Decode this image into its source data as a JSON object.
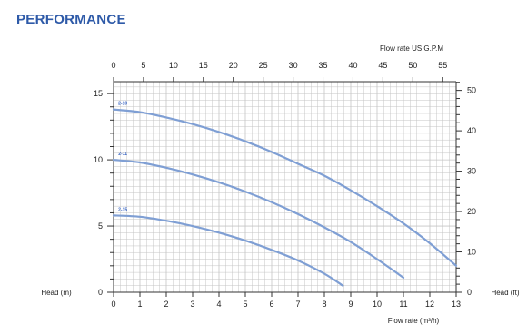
{
  "title": "PERFORMANCE",
  "chart_data": {
    "type": "line",
    "x_bottom": {
      "label": "Flow rate (m³/h)",
      "range": [
        0,
        13
      ],
      "ticks": [
        0,
        1,
        2,
        3,
        4,
        5,
        6,
        7,
        8,
        9,
        10,
        11,
        12,
        13
      ]
    },
    "x_top": {
      "label": "Flow rate US G.P.M",
      "ticks": [
        0,
        5,
        10,
        15,
        20,
        25,
        30,
        35,
        40,
        45,
        50,
        55
      ]
    },
    "y_left": {
      "label": "Head (m)",
      "range": [
        0,
        15
      ],
      "ticks": [
        0,
        5,
        10,
        15
      ]
    },
    "y_right": {
      "label": "Head (ft)",
      "ticks": [
        0,
        10,
        20,
        30,
        40,
        50
      ]
    },
    "grid": true,
    "series": [
      {
        "name": "2-10",
        "x": [
          0,
          1,
          2,
          3,
          4,
          5,
          6,
          7,
          8,
          9,
          10,
          11,
          12,
          13
        ],
        "y": [
          13.8,
          13.6,
          13.2,
          12.7,
          12.1,
          11.4,
          10.6,
          9.7,
          8.8,
          7.7,
          6.5,
          5.2,
          3.7,
          2.0
        ]
      },
      {
        "name": "2-11",
        "x": [
          0,
          1,
          2,
          3,
          4,
          5,
          6,
          7,
          8,
          9,
          10,
          11
        ],
        "y": [
          10.0,
          9.8,
          9.4,
          8.9,
          8.3,
          7.6,
          6.8,
          5.9,
          4.9,
          3.8,
          2.5,
          1.1
        ]
      },
      {
        "name": "2-15",
        "x": [
          0,
          1,
          2,
          3,
          4,
          5,
          6,
          7,
          8,
          8.7
        ],
        "y": [
          5.8,
          5.7,
          5.4,
          5.0,
          4.5,
          3.9,
          3.2,
          2.4,
          1.4,
          0.5
        ]
      }
    ],
    "colors": {
      "curve": "#7f9fd4",
      "grid": "#c4c4c4",
      "axis": "#333333"
    }
  }
}
